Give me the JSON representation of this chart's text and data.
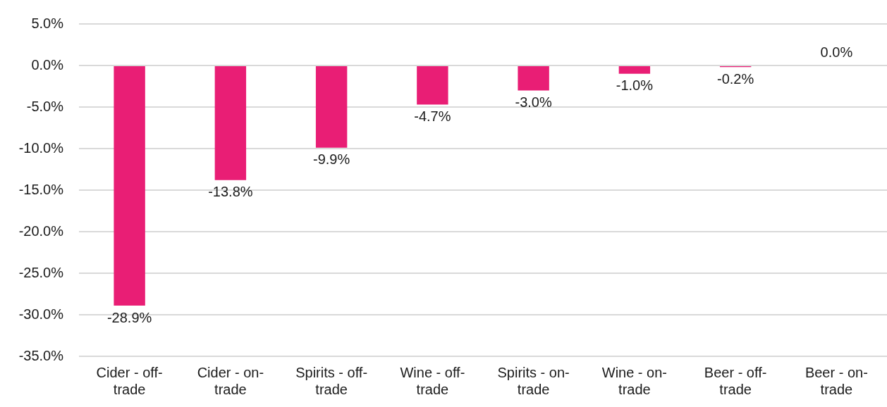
{
  "chart_data": {
    "type": "bar",
    "categories": [
      "Cider - off-trade",
      "Cider - on-trade",
      "Spirits - off-trade",
      "Wine - off-trade",
      "Spirits - on-trade",
      "Wine - on-trade",
      "Beer - off-trade",
      "Beer - on-trade"
    ],
    "values": [
      -28.9,
      -13.8,
      -9.9,
      -4.7,
      -3.0,
      -1.0,
      -0.2,
      0.0
    ],
    "color": "#e91e75",
    "value_labels": [
      "-28.9%",
      "-13.8%",
      "-9.9%",
      "-4.7%",
      "-3.0%",
      "-1.0%",
      "-0.2%",
      "0.0%"
    ],
    "ylim": [
      -35,
      5
    ],
    "yticks": [
      {
        "value": 5,
        "label": "5.0%"
      },
      {
        "value": 0,
        "label": "0.0%"
      },
      {
        "value": -5,
        "label": "-5.0%"
      },
      {
        "value": -10,
        "label": "-10.0%"
      },
      {
        "value": -15,
        "label": "-15.0%"
      },
      {
        "value": -20,
        "label": "-20.0%"
      },
      {
        "value": -25,
        "label": "-25.0%"
      },
      {
        "value": -30,
        "label": "-30.0%"
      },
      {
        "value": -35,
        "label": "-35.0%"
      }
    ],
    "grid": "y"
  }
}
